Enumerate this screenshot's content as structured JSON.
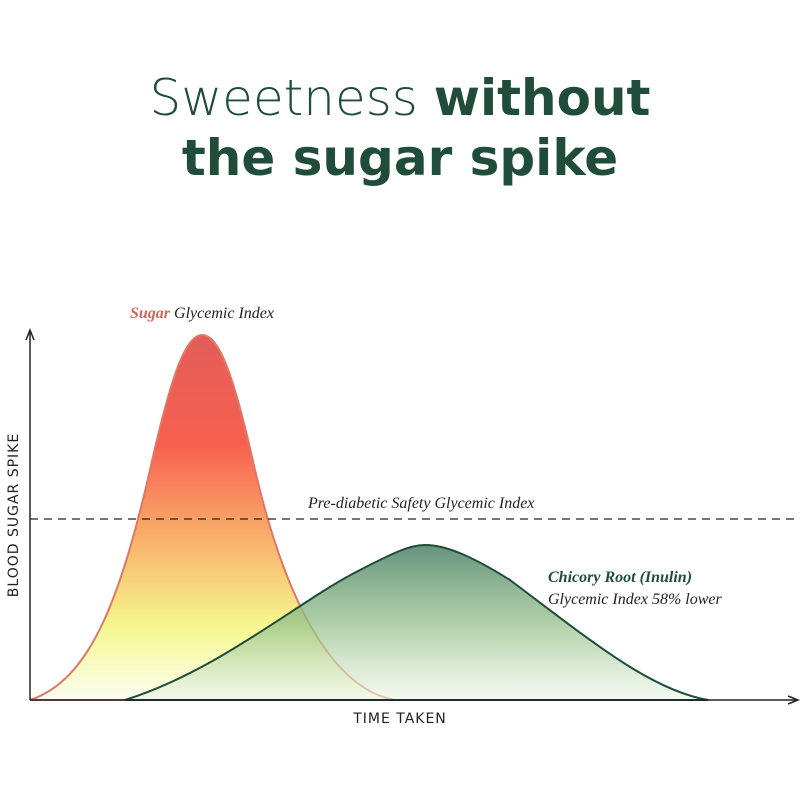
{
  "title": {
    "line1_regular": "Sweetness",
    "line1_bold": "without",
    "line2_bold": "the sugar spike"
  },
  "axes": {
    "y_label": "BLOOD SUGAR SPIKE",
    "x_label": "TIME TAKEN"
  },
  "sugar": {
    "name": "Sugar",
    "label": "Glycemic Index"
  },
  "threshold": {
    "label": "Pre-diabetic Safety Glycemic Index"
  },
  "chicory": {
    "name": "Chicory Root (Inulin)",
    "label": "Glycemic Index 58% lower"
  }
}
